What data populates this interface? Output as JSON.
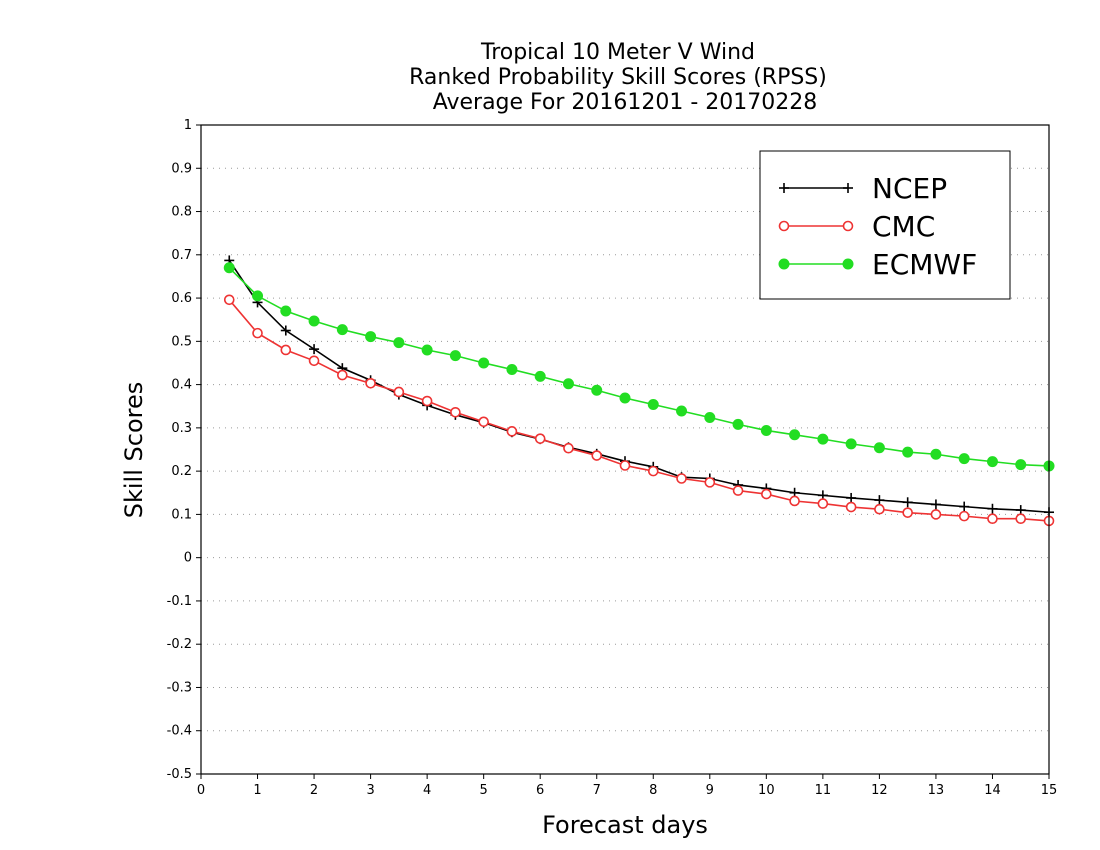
{
  "chart_data": {
    "type": "line",
    "title_lines": [
      "Tropical 10 Meter V Wind",
      "Ranked Probability Skill Scores (RPSS)",
      "Average For 20161201 - 20170228"
    ],
    "xlabel": "Forecast days",
    "ylabel": "Skill Scores",
    "xlim": [
      0,
      15
    ],
    "ylim": [
      -0.5,
      1
    ],
    "x_ticks": [
      "0",
      "1",
      "2",
      "3",
      "4",
      "5",
      "6",
      "7",
      "8",
      "9",
      "10",
      "11",
      "12",
      "13",
      "14",
      "15"
    ],
    "y_ticks": [
      "-0.5",
      "-0.4",
      "-0.3",
      "-0.2",
      "-0.1",
      "0",
      "0.1",
      "0.2",
      "0.3",
      "0.4",
      "0.5",
      "0.6",
      "0.7",
      "0.8",
      "0.9",
      "1"
    ],
    "grid": "horizontal dotted",
    "legend_position": "top-right",
    "x": [
      0.5,
      1,
      1.5,
      2,
      2.5,
      3,
      3.5,
      4,
      4.5,
      5,
      5.5,
      6,
      6.5,
      7,
      7.5,
      8,
      8.5,
      9,
      9.5,
      10,
      10.5,
      11,
      11.5,
      12,
      12.5,
      13,
      13.5,
      14,
      14.5,
      15
    ],
    "series": [
      {
        "name": "NCEP",
        "color": "#000000",
        "marker": "plus",
        "values": [
          0.687,
          0.59,
          0.525,
          0.482,
          0.438,
          0.41,
          0.377,
          0.352,
          0.33,
          0.312,
          0.29,
          0.274,
          0.255,
          0.24,
          0.223,
          0.21,
          0.186,
          0.183,
          0.168,
          0.16,
          0.15,
          0.144,
          0.138,
          0.133,
          0.128,
          0.123,
          0.118,
          0.113,
          0.11,
          0.105
        ]
      },
      {
        "name": "CMC",
        "color": "#ee3333",
        "marker": "open-circle",
        "values": [
          0.596,
          0.519,
          0.48,
          0.455,
          0.422,
          0.403,
          0.383,
          0.362,
          0.336,
          0.314,
          0.292,
          0.275,
          0.253,
          0.236,
          0.213,
          0.2,
          0.183,
          0.174,
          0.155,
          0.147,
          0.131,
          0.125,
          0.117,
          0.112,
          0.104,
          0.1,
          0.096,
          0.09,
          0.09,
          0.085
        ]
      },
      {
        "name": "ECMWF",
        "color": "#22dd22",
        "marker": "filled-circle",
        "values": [
          0.67,
          0.605,
          0.57,
          0.547,
          0.527,
          0.511,
          0.497,
          0.48,
          0.467,
          0.45,
          0.435,
          0.419,
          0.402,
          0.387,
          0.369,
          0.354,
          0.339,
          0.324,
          0.308,
          0.294,
          0.284,
          0.274,
          0.263,
          0.254,
          0.244,
          0.239,
          0.229,
          0.222,
          0.215,
          0.212
        ]
      }
    ]
  }
}
